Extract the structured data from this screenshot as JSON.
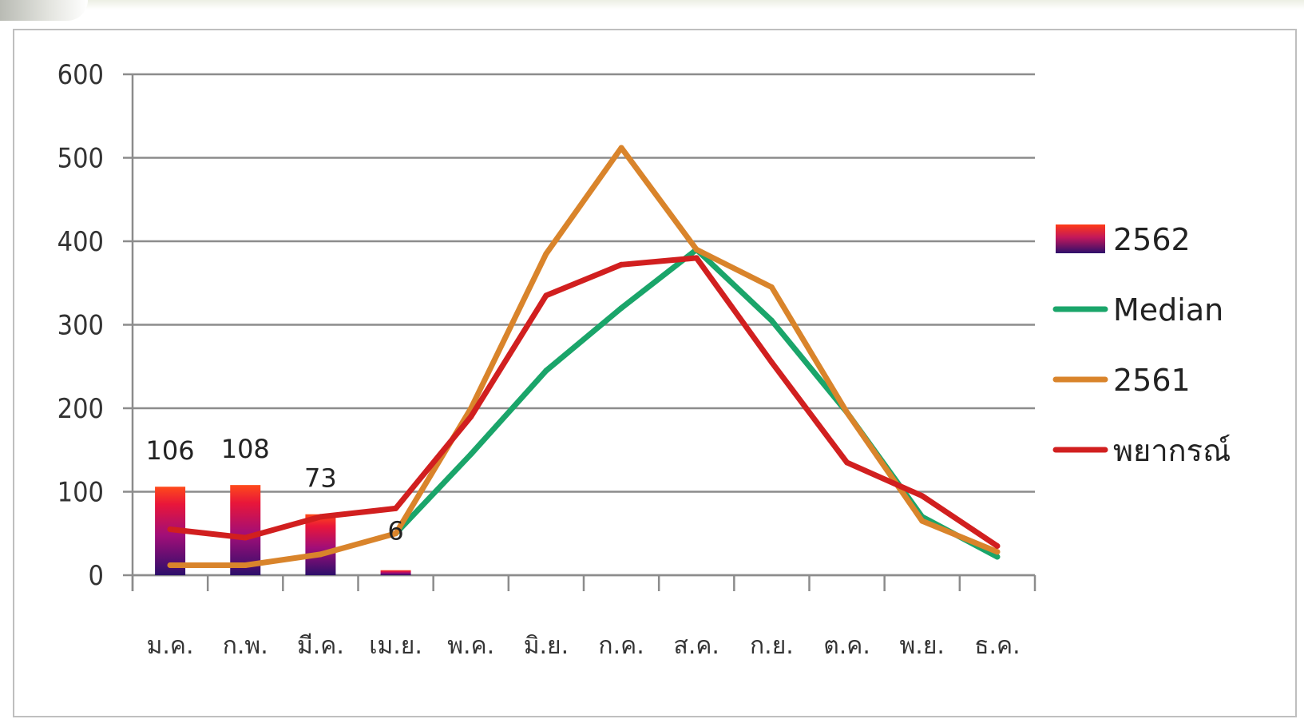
{
  "chart_data": {
    "type": "bar",
    "title": "",
    "xlabel": "",
    "ylabel": "",
    "ylim": [
      0,
      600
    ],
    "yticks": [
      "0",
      "100",
      "200",
      "300",
      "400",
      "500",
      "600"
    ],
    "grid": true,
    "legend_position": "right",
    "categories": [
      "ม.ค.",
      "ก.พ.",
      "มี.ค.",
      "เม.ย.",
      "พ.ค.",
      "มิ.ย.",
      "ก.ค.",
      "ส.ค.",
      "ก.ย.",
      "ต.ค.",
      "พ.ย.",
      "ธ.ค."
    ],
    "series": [
      {
        "name": "2562",
        "kind": "bar",
        "color": "#c2185b",
        "values": [
          106,
          108,
          73,
          6,
          null,
          null,
          null,
          null,
          null,
          null,
          null,
          null
        ],
        "data_labels": [
          "106",
          "108",
          "73",
          "6",
          null,
          null,
          null,
          null,
          null,
          null,
          null,
          null
        ]
      },
      {
        "name": "Median",
        "kind": "line",
        "color": "#1aa56a",
        "values": [
          null,
          null,
          null,
          50,
          145,
          245,
          320,
          390,
          305,
          195,
          70,
          22
        ]
      },
      {
        "name": "2561",
        "kind": "line",
        "color": "#d9842b",
        "values": [
          12,
          12,
          25,
          50,
          200,
          385,
          512,
          390,
          345,
          195,
          65,
          28
        ]
      },
      {
        "name": "พยากรณ์",
        "kind": "line",
        "color": "#d11f1f",
        "values": [
          55,
          45,
          70,
          80,
          190,
          335,
          372,
          380,
          255,
          135,
          95,
          35
        ]
      }
    ]
  }
}
